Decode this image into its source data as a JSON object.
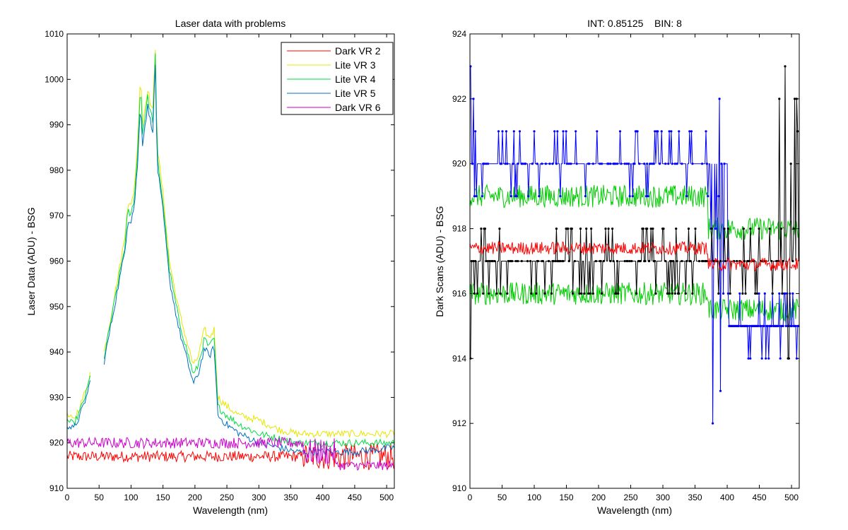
{
  "chart_data": [
    {
      "type": "line",
      "title": "Laser data with problems",
      "xlabel": "Wavelength (nm)",
      "ylabel": "Laser Data (ADU) - BSG",
      "xlim": [
        0,
        512
      ],
      "ylim": [
        910,
        1010
      ],
      "xticks": [
        "0",
        "50",
        "100",
        "150",
        "200",
        "250",
        "300",
        "350",
        "400",
        "450",
        "500"
      ],
      "yticks": [
        "910",
        "920",
        "930",
        "940",
        "950",
        "960",
        "970",
        "980",
        "990",
        "1000",
        "1010"
      ],
      "legend_position": "top-right",
      "series": [
        {
          "name": "Dark VR 2",
          "color": "#ff0000",
          "style": "noisy-flat",
          "segments": [
            {
              "x": [
                0,
                370
              ],
              "level": 917,
              "noise": 1.2
            },
            {
              "x": [
                370,
                512
              ],
              "level": 917,
              "noise": 3
            }
          ]
        },
        {
          "name": "Lite VR 3",
          "color": "#e6e600",
          "style": "peak",
          "points": [
            [
              0,
              926
            ],
            [
              10,
              925
            ],
            [
              20,
              928
            ],
            [
              30,
              932
            ],
            [
              37,
              936
            ],
            [
              58,
              940
            ],
            [
              70,
              949
            ],
            [
              90,
              965
            ],
            [
              95,
              973
            ],
            [
              100,
              972
            ],
            [
              105,
              976
            ],
            [
              110,
              985
            ],
            [
              115,
              1002
            ],
            [
              118,
              990
            ],
            [
              122,
              994
            ],
            [
              126,
              998
            ],
            [
              130,
              995
            ],
            [
              134,
              993
            ],
            [
              138,
              1007
            ],
            [
              141,
              985
            ],
            [
              150,
              975
            ],
            [
              160,
              960
            ],
            [
              175,
              949
            ],
            [
              190,
              941
            ],
            [
              198,
              937
            ],
            [
              205,
              939
            ],
            [
              215,
              945
            ],
            [
              222,
              943
            ],
            [
              230,
              945
            ],
            [
              236,
              930
            ],
            [
              250,
              928
            ],
            [
              270,
              926
            ],
            [
              300,
              925
            ],
            [
              330,
              923
            ],
            [
              360,
              922
            ],
            [
              400,
              922
            ],
            [
              450,
              922
            ],
            [
              512,
              922
            ]
          ]
        },
        {
          "name": "Lite VR 4",
          "color": "#00dd44",
          "style": "peak",
          "points": [
            [
              0,
              925
            ],
            [
              10,
              924
            ],
            [
              20,
              927
            ],
            [
              30,
              931
            ],
            [
              37,
              935
            ],
            [
              58,
              939
            ],
            [
              70,
              948
            ],
            [
              90,
              963
            ],
            [
              95,
              971
            ],
            [
              100,
              970
            ],
            [
              105,
              974
            ],
            [
              110,
              983
            ],
            [
              115,
              1000
            ],
            [
              118,
              988
            ],
            [
              122,
              992
            ],
            [
              126,
              996
            ],
            [
              130,
              993
            ],
            [
              134,
              991
            ],
            [
              138,
              1005
            ],
            [
              141,
              983
            ],
            [
              150,
              973
            ],
            [
              160,
              958
            ],
            [
              175,
              947
            ],
            [
              190,
              939
            ],
            [
              198,
              935
            ],
            [
              205,
              937
            ],
            [
              215,
              943
            ],
            [
              222,
              941
            ],
            [
              230,
              943
            ],
            [
              236,
              928
            ],
            [
              250,
              926
            ],
            [
              270,
              924
            ],
            [
              300,
              922
            ],
            [
              330,
              921
            ],
            [
              360,
              920
            ],
            [
              400,
              920
            ],
            [
              450,
              920
            ],
            [
              512,
              920
            ]
          ]
        },
        {
          "name": "Lite VR 5",
          "color": "#0070c0",
          "style": "peak",
          "points": [
            [
              0,
              924
            ],
            [
              10,
              923
            ],
            [
              20,
              926
            ],
            [
              30,
              930
            ],
            [
              37,
              934
            ],
            [
              58,
              938
            ],
            [
              70,
              947
            ],
            [
              90,
              962
            ],
            [
              95,
              969
            ],
            [
              100,
              969
            ],
            [
              105,
              972
            ],
            [
              110,
              981
            ],
            [
              115,
              995
            ],
            [
              118,
              986
            ],
            [
              122,
              990
            ],
            [
              126,
              994
            ],
            [
              130,
              991
            ],
            [
              134,
              989
            ],
            [
              138,
              1003
            ],
            [
              141,
              981
            ],
            [
              150,
              971
            ],
            [
              160,
              956
            ],
            [
              175,
              945
            ],
            [
              190,
              937
            ],
            [
              198,
              933
            ],
            [
              205,
              935
            ],
            [
              215,
              941
            ],
            [
              222,
              939
            ],
            [
              230,
              941
            ],
            [
              236,
              926
            ],
            [
              250,
              924
            ],
            [
              270,
              922
            ],
            [
              300,
              920
            ],
            [
              330,
              919
            ],
            [
              360,
              918
            ],
            [
              400,
              918
            ],
            [
              450,
              918
            ],
            [
              512,
              919
            ]
          ]
        },
        {
          "name": "Dark VR 6",
          "color": "#cc00cc",
          "style": "noisy-flat",
          "segments": [
            {
              "x": [
                0,
                370
              ],
              "level": 920,
              "noise": 1.2
            },
            {
              "x": [
                370,
                420
              ],
              "level": 918,
              "noise": 3
            },
            {
              "x": [
                420,
                512
              ],
              "level": 915,
              "noise": 1
            }
          ]
        }
      ]
    },
    {
      "type": "line",
      "title": "INT: 0.85125    BIN: 8",
      "xlabel": "Wavelength (nm)",
      "ylabel": "Dark Scans (ADU) - BSG",
      "xlim": [
        0,
        512
      ],
      "ylim": [
        910,
        924
      ],
      "xticks": [
        "0",
        "50",
        "100",
        "150",
        "200",
        "250",
        "300",
        "350",
        "400",
        "450",
        "500"
      ],
      "yticks": [
        "910",
        "912",
        "914",
        "916",
        "918",
        "920",
        "922",
        "924"
      ],
      "series": [
        {
          "color": "#00cc00",
          "style": "noise-band",
          "x": [
            0,
            512
          ],
          "level": 919,
          "noise": 0.35,
          "level_after_370": 918
        },
        {
          "color": "#00cc00",
          "style": "noise-band",
          "x": [
            0,
            512
          ],
          "level": 916,
          "noise": 0.35,
          "level_after_370": 915.5
        },
        {
          "color": "#0000ff",
          "style": "quantized-markers",
          "x": [
            0,
            512
          ],
          "level": 920,
          "level_after_370": 915,
          "spike_levels": [
            919,
            921
          ],
          "outliers": [
            [
              1,
              923
            ],
            [
              6,
              922
            ],
            [
              375,
              912
            ],
            [
              378,
              912
            ],
            [
              390,
              913
            ],
            [
              388,
              922
            ]
          ]
        },
        {
          "color": "#000000",
          "style": "quantized-markers",
          "x": [
            0,
            512
          ],
          "level": 917,
          "spike_levels": [
            916,
            918
          ],
          "outliers": [
            [
              1,
              914
            ],
            [
              490,
              923
            ],
            [
              495,
              912
            ],
            [
              500,
              923
            ],
            [
              505,
              912
            ],
            [
              508,
              922
            ]
          ]
        },
        {
          "color": "#ff0000",
          "style": "noisy-flat",
          "x": [
            0,
            512
          ],
          "level": 917.4,
          "noise": 0.2,
          "level_after_370": 916.9
        }
      ]
    }
  ]
}
